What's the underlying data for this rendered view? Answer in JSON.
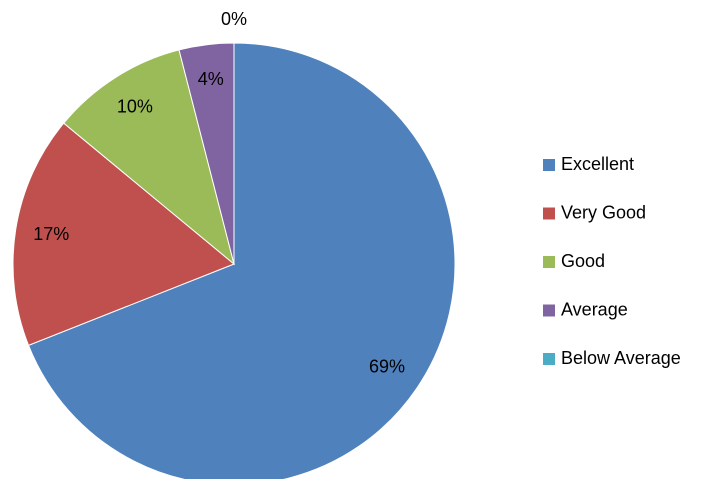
{
  "chart_data": {
    "type": "pie",
    "categories": [
      "Excellent",
      "Very Good",
      "Good",
      "Average",
      "Below Average"
    ],
    "values": [
      69,
      17,
      10,
      4,
      0
    ],
    "value_labels": [
      "69%",
      "17%",
      "10%",
      "4%",
      "0%"
    ],
    "colors": [
      "#4f81bd",
      "#c0504d",
      "#9bbb59",
      "#8064a2",
      "#4bacc6"
    ],
    "legend": "right"
  }
}
